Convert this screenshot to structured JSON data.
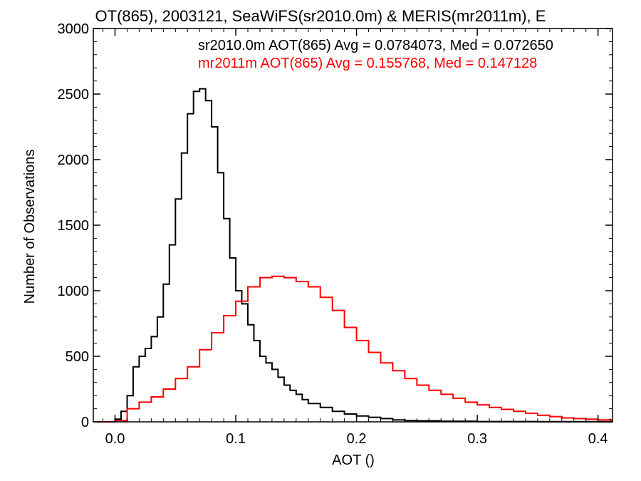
{
  "chart_data": {
    "type": "line",
    "title": "OT(865), 2003121, SeaWiFS(sr2010.0m) & MERIS(mr2011m), E",
    "xlabel": "AOT ()",
    "ylabel": "Number of Observations",
    "xlim": [
      -0.018,
      0.412
    ],
    "ylim": [
      0,
      3000
    ],
    "x_ticks": [
      0.0,
      0.1,
      0.2,
      0.3,
      0.4
    ],
    "x_tick_labels": [
      "0.0",
      "0.1",
      "0.2",
      "0.3",
      "0.4"
    ],
    "y_ticks": [
      0,
      500,
      1000,
      1500,
      2000,
      2500,
      3000
    ],
    "y_tick_labels": [
      "0",
      "500",
      "1000",
      "1500",
      "2000",
      "2500",
      "3000"
    ],
    "grid": false,
    "step": true,
    "annotations": [
      {
        "text": "sr2010.0m AOT(865) Avg = 0.0784073, Med = 0.072650",
        "color": "#000000"
      },
      {
        "text": "mr2011m AOT(865) Avg = 0.155768, Med = 0.147128",
        "color": "#ff0000"
      }
    ],
    "series": [
      {
        "color": "#000000",
        "x": [
          -0.015,
          0.0,
          0.005,
          0.01,
          0.015,
          0.02,
          0.025,
          0.03,
          0.035,
          0.04,
          0.045,
          0.05,
          0.055,
          0.06,
          0.065,
          0.07,
          0.075,
          0.08,
          0.085,
          0.09,
          0.095,
          0.1,
          0.105,
          0.11,
          0.115,
          0.12,
          0.125,
          0.13,
          0.135,
          0.14,
          0.145,
          0.15,
          0.155,
          0.16,
          0.17,
          0.18,
          0.19,
          0.2,
          0.21,
          0.22,
          0.23,
          0.24,
          0.25,
          0.27,
          0.3,
          0.35,
          0.412
        ],
        "y": [
          0,
          20,
          80,
          200,
          420,
          500,
          560,
          650,
          800,
          1050,
          1350,
          1700,
          2050,
          2350,
          2520,
          2540,
          2450,
          2250,
          1900,
          1550,
          1250,
          1000,
          900,
          740,
          620,
          500,
          450,
          400,
          340,
          280,
          240,
          210,
          170,
          140,
          110,
          80,
          60,
          45,
          35,
          25,
          15,
          10,
          8,
          5,
          2,
          1,
          0
        ]
      },
      {
        "color": "#ff0000",
        "x": [
          -0.015,
          0.0,
          0.01,
          0.02,
          0.03,
          0.04,
          0.05,
          0.06,
          0.07,
          0.08,
          0.09,
          0.1,
          0.11,
          0.12,
          0.13,
          0.14,
          0.15,
          0.16,
          0.17,
          0.18,
          0.19,
          0.2,
          0.21,
          0.22,
          0.23,
          0.24,
          0.25,
          0.26,
          0.27,
          0.28,
          0.29,
          0.3,
          0.31,
          0.32,
          0.33,
          0.34,
          0.35,
          0.36,
          0.37,
          0.38,
          0.39,
          0.4,
          0.412
        ],
        "y": [
          0,
          10,
          100,
          150,
          190,
          250,
          330,
          420,
          550,
          680,
          810,
          920,
          1030,
          1100,
          1110,
          1100,
          1070,
          1030,
          950,
          850,
          720,
          620,
          530,
          450,
          390,
          330,
          280,
          240,
          210,
          180,
          150,
          130,
          110,
          95,
          80,
          65,
          50,
          40,
          30,
          25,
          20,
          15,
          10
        ]
      }
    ]
  }
}
